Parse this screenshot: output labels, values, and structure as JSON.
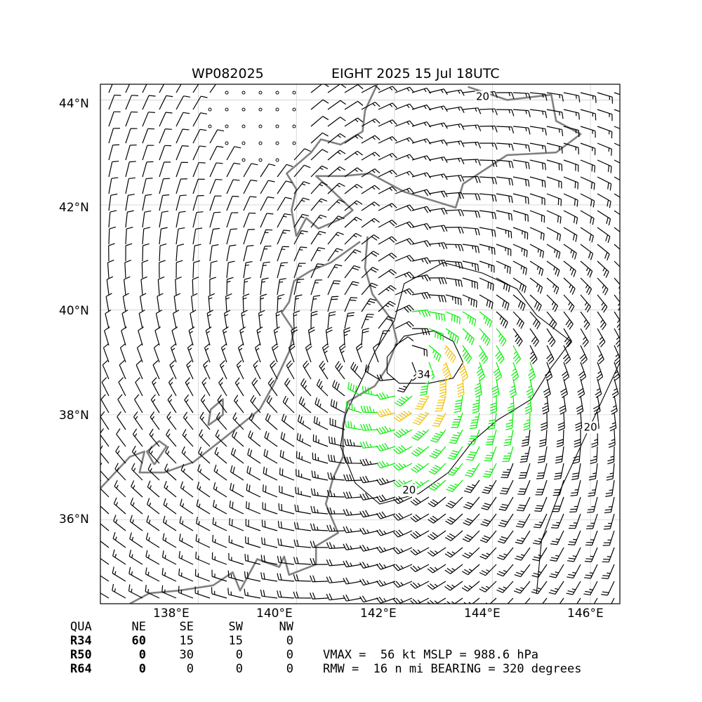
{
  "title": {
    "storm_id": "WP082025",
    "storm_name_time": "EIGHT 2025 15 Jul 18UTC"
  },
  "map": {
    "extent": {
      "lon_min": 136.0,
      "lon_max": 146.6,
      "lat_min": 34.4,
      "lat_max": 44.3
    },
    "lat_ticks": [
      "44°N",
      "42°N",
      "40°N",
      "38°N",
      "36°N"
    ],
    "lon_ticks": [
      "138°E",
      "140°E",
      "142°E",
      "144°E",
      "146°E"
    ],
    "gridlines": true,
    "coastline_color": "#808080",
    "contour_labels": [
      "20",
      "34",
      "20",
      "20"
    ],
    "barb_colors": {
      "below_34kt": "#000000",
      "gale_34_49kt": "#00ee00",
      "storm_50kt_plus": "#f0c000"
    },
    "storm_center": {
      "lon": 142.1,
      "lat": 39.0
    }
  },
  "wind_radii_table": {
    "headers": [
      "QUA",
      "NE",
      "SE",
      "SW",
      "NW"
    ],
    "rows": [
      {
        "label": "R34",
        "values": [
          "60",
          "15",
          "15",
          "0"
        ]
      },
      {
        "label": "R50",
        "values": [
          "0",
          "30",
          "0",
          "0"
        ]
      },
      {
        "label": "R64",
        "values": [
          "0",
          "0",
          "0",
          "0"
        ]
      }
    ]
  },
  "stats": {
    "line1": "VMAX =  56 kt MSLP = 988.6 hPa",
    "line2": "RMW =  16 n mi BEARING = 320 degrees"
  }
}
